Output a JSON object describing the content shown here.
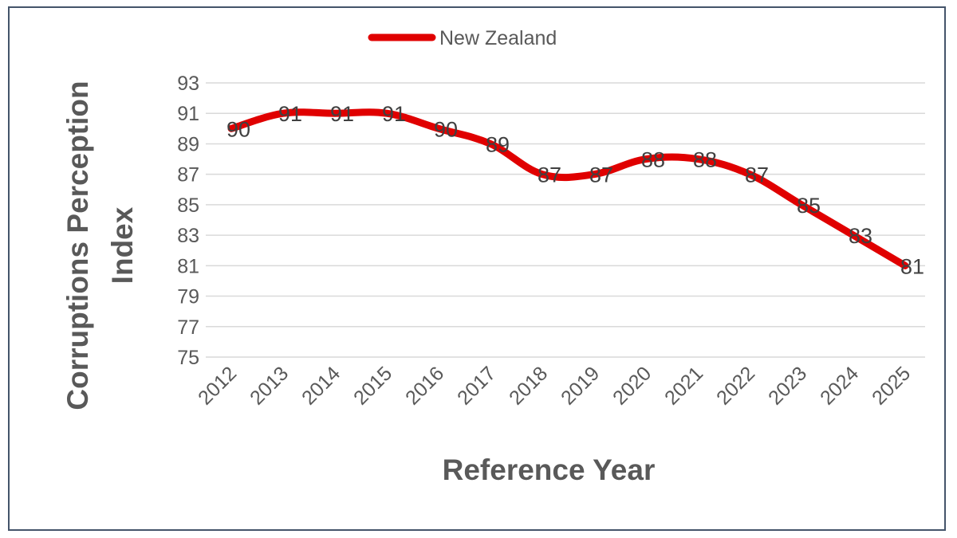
{
  "chart_data": {
    "type": "line",
    "title": "",
    "xlabel": "Reference Year",
    "ylabel": "Corruptions Perception Index",
    "ylabel_lines": [
      "Corruptions Perception",
      "Index"
    ],
    "categories": [
      "2012",
      "2013",
      "2014",
      "2015",
      "2016",
      "2017",
      "2018",
      "2019",
      "2020",
      "2021",
      "2022",
      "2023",
      "2024",
      "2025"
    ],
    "series": [
      {
        "name": "New Zealand",
        "color": "#e00000",
        "values": [
          90,
          91,
          91,
          91,
          90,
          89,
          87,
          87,
          88,
          88,
          87,
          85,
          83,
          81
        ]
      }
    ],
    "ylim": [
      75,
      93
    ],
    "yticks": [
      93,
      91,
      89,
      87,
      85,
      83,
      81,
      79,
      77,
      75
    ],
    "grid": true,
    "legend_position": "top",
    "data_labels": true
  }
}
